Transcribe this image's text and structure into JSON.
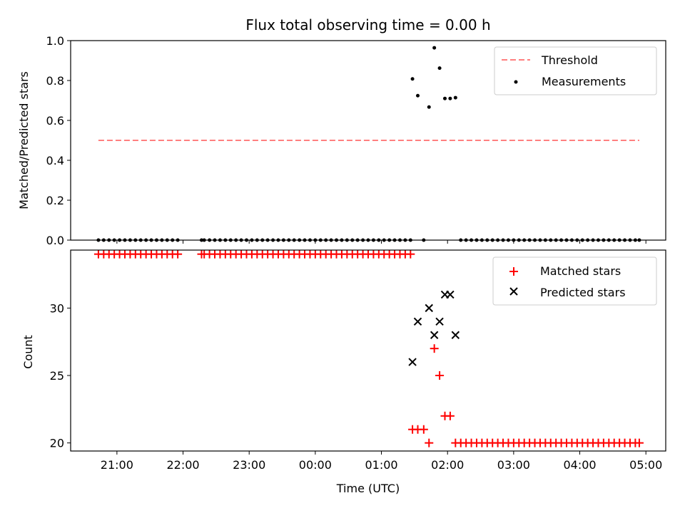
{
  "chart_data": [
    {
      "type": "scatter",
      "title": "Flux total observing time = 0.00 h",
      "xlabel": "",
      "ylabel": "Matched/Predicted stars",
      "ylim": [
        0,
        1.0
      ],
      "x_range_hours": [
        20.3,
        29.3
      ],
      "x_ticks": [],
      "y_ticks": [
        0.0,
        0.2,
        0.4,
        0.6,
        0.8,
        1.0
      ],
      "y_tick_labels": [
        "0.0",
        "0.2",
        "0.4",
        "0.6",
        "0.8",
        "1.0"
      ],
      "legend_position": "top-right",
      "threshold": {
        "name": "Threshold",
        "value": 0.5,
        "x_start": 20.72,
        "x_end": 28.9,
        "color": "#ff7f7f",
        "style": "dashed"
      },
      "series": [
        {
          "name": "Measurements",
          "marker": "dot",
          "color": "#000000",
          "points": [
            [
              20.72,
              0
            ],
            [
              20.8,
              0
            ],
            [
              20.88,
              0
            ],
            [
              20.96,
              0
            ],
            [
              21.04,
              0
            ],
            [
              21.12,
              0
            ],
            [
              21.2,
              0
            ],
            [
              21.28,
              0
            ],
            [
              21.36,
              0
            ],
            [
              21.44,
              0
            ],
            [
              21.52,
              0
            ],
            [
              21.6,
              0
            ],
            [
              21.68,
              0
            ],
            [
              21.76,
              0
            ],
            [
              21.84,
              0
            ],
            [
              21.92,
              0
            ],
            [
              22.28,
              0
            ],
            [
              22.32,
              0
            ],
            [
              22.4,
              0
            ],
            [
              22.48,
              0
            ],
            [
              22.56,
              0
            ],
            [
              22.64,
              0
            ],
            [
              22.72,
              0
            ],
            [
              22.8,
              0
            ],
            [
              22.88,
              0
            ],
            [
              22.96,
              0
            ],
            [
              23.04,
              0
            ],
            [
              23.12,
              0
            ],
            [
              23.2,
              0
            ],
            [
              23.28,
              0
            ],
            [
              23.36,
              0
            ],
            [
              23.44,
              0
            ],
            [
              23.52,
              0
            ],
            [
              23.6,
              0
            ],
            [
              23.68,
              0
            ],
            [
              23.76,
              0
            ],
            [
              23.84,
              0
            ],
            [
              23.92,
              0
            ],
            [
              24.0,
              0
            ],
            [
              24.08,
              0
            ],
            [
              24.16,
              0
            ],
            [
              24.24,
              0
            ],
            [
              24.32,
              0
            ],
            [
              24.4,
              0
            ],
            [
              24.48,
              0
            ],
            [
              24.56,
              0
            ],
            [
              24.64,
              0
            ],
            [
              24.72,
              0
            ],
            [
              24.8,
              0
            ],
            [
              24.88,
              0
            ],
            [
              24.96,
              0
            ],
            [
              25.04,
              0
            ],
            [
              25.12,
              0
            ],
            [
              25.2,
              0
            ],
            [
              25.28,
              0
            ],
            [
              25.36,
              0
            ],
            [
              25.44,
              0
            ],
            [
              25.47,
              0.808
            ],
            [
              25.55,
              0.724
            ],
            [
              25.64,
              0
            ],
            [
              25.72,
              0.667
            ],
            [
              25.8,
              0.964
            ],
            [
              25.88,
              0.862
            ],
            [
              25.96,
              0.71
            ],
            [
              26.04,
              0.71
            ],
            [
              26.12,
              0.714
            ],
            [
              26.2,
              0
            ],
            [
              26.28,
              0
            ],
            [
              26.36,
              0
            ],
            [
              26.44,
              0
            ],
            [
              26.52,
              0
            ],
            [
              26.6,
              0
            ],
            [
              26.68,
              0
            ],
            [
              26.76,
              0
            ],
            [
              26.84,
              0
            ],
            [
              26.92,
              0
            ],
            [
              27.0,
              0
            ],
            [
              27.08,
              0
            ],
            [
              27.16,
              0
            ],
            [
              27.24,
              0
            ],
            [
              27.32,
              0
            ],
            [
              27.4,
              0
            ],
            [
              27.48,
              0
            ],
            [
              27.56,
              0
            ],
            [
              27.64,
              0
            ],
            [
              27.72,
              0
            ],
            [
              27.8,
              0
            ],
            [
              27.88,
              0
            ],
            [
              27.96,
              0
            ],
            [
              28.04,
              0
            ],
            [
              28.12,
              0
            ],
            [
              28.2,
              0
            ],
            [
              28.28,
              0
            ],
            [
              28.36,
              0
            ],
            [
              28.44,
              0
            ],
            [
              28.52,
              0
            ],
            [
              28.6,
              0
            ],
            [
              28.68,
              0
            ],
            [
              28.76,
              0
            ],
            [
              28.84,
              0
            ],
            [
              28.9,
              0
            ]
          ]
        }
      ]
    },
    {
      "type": "scatter",
      "title": "",
      "xlabel": "Time (UTC)",
      "ylabel": "Count",
      "ylim": [
        19.4,
        34.3
      ],
      "x_range_hours": [
        20.3,
        29.3
      ],
      "x_ticks": [
        21,
        22,
        23,
        24,
        25,
        26,
        27,
        28,
        29
      ],
      "x_tick_labels": [
        "21:00",
        "22:00",
        "23:00",
        "00:00",
        "01:00",
        "02:00",
        "03:00",
        "04:00",
        "05:00"
      ],
      "y_ticks": [
        20,
        25,
        30
      ],
      "y_tick_labels": [
        "20",
        "25",
        "30"
      ],
      "legend_position": "top-right",
      "series": [
        {
          "name": "Matched stars",
          "marker": "plus",
          "color": "#ff0000",
          "points": [
            [
              20.72,
              34
            ],
            [
              20.8,
              34
            ],
            [
              20.88,
              34
            ],
            [
              20.96,
              34
            ],
            [
              21.04,
              34
            ],
            [
              21.12,
              34
            ],
            [
              21.2,
              34
            ],
            [
              21.28,
              34
            ],
            [
              21.36,
              34
            ],
            [
              21.44,
              34
            ],
            [
              21.52,
              34
            ],
            [
              21.6,
              34
            ],
            [
              21.68,
              34
            ],
            [
              21.76,
              34
            ],
            [
              21.84,
              34
            ],
            [
              21.92,
              34
            ],
            [
              22.28,
              34
            ],
            [
              22.32,
              34
            ],
            [
              22.4,
              34
            ],
            [
              22.48,
              34
            ],
            [
              22.56,
              34
            ],
            [
              22.64,
              34
            ],
            [
              22.72,
              34
            ],
            [
              22.8,
              34
            ],
            [
              22.88,
              34
            ],
            [
              22.96,
              34
            ],
            [
              23.04,
              34
            ],
            [
              23.12,
              34
            ],
            [
              23.2,
              34
            ],
            [
              23.28,
              34
            ],
            [
              23.36,
              34
            ],
            [
              23.44,
              34
            ],
            [
              23.52,
              34
            ],
            [
              23.6,
              34
            ],
            [
              23.68,
              34
            ],
            [
              23.76,
              34
            ],
            [
              23.84,
              34
            ],
            [
              23.92,
              34
            ],
            [
              24.0,
              34
            ],
            [
              24.08,
              34
            ],
            [
              24.16,
              34
            ],
            [
              24.24,
              34
            ],
            [
              24.32,
              34
            ],
            [
              24.4,
              34
            ],
            [
              24.48,
              34
            ],
            [
              24.56,
              34
            ],
            [
              24.64,
              34
            ],
            [
              24.72,
              34
            ],
            [
              24.8,
              34
            ],
            [
              24.88,
              34
            ],
            [
              24.96,
              34
            ],
            [
              25.04,
              34
            ],
            [
              25.12,
              34
            ],
            [
              25.2,
              34
            ],
            [
              25.28,
              34
            ],
            [
              25.36,
              34
            ],
            [
              25.44,
              34
            ],
            [
              25.47,
              21
            ],
            [
              25.55,
              21
            ],
            [
              25.64,
              21
            ],
            [
              25.72,
              20
            ],
            [
              25.8,
              27
            ],
            [
              25.88,
              25
            ],
            [
              25.96,
              22
            ],
            [
              26.04,
              22
            ],
            [
              26.12,
              20
            ],
            [
              26.2,
              20
            ],
            [
              26.28,
              20
            ],
            [
              26.36,
              20
            ],
            [
              26.44,
              20
            ],
            [
              26.52,
              20
            ],
            [
              26.6,
              20
            ],
            [
              26.68,
              20
            ],
            [
              26.76,
              20
            ],
            [
              26.84,
              20
            ],
            [
              26.92,
              20
            ],
            [
              27.0,
              20
            ],
            [
              27.08,
              20
            ],
            [
              27.16,
              20
            ],
            [
              27.24,
              20
            ],
            [
              27.32,
              20
            ],
            [
              27.4,
              20
            ],
            [
              27.48,
              20
            ],
            [
              27.56,
              20
            ],
            [
              27.64,
              20
            ],
            [
              27.72,
              20
            ],
            [
              27.8,
              20
            ],
            [
              27.88,
              20
            ],
            [
              27.96,
              20
            ],
            [
              28.04,
              20
            ],
            [
              28.12,
              20
            ],
            [
              28.2,
              20
            ],
            [
              28.28,
              20
            ],
            [
              28.36,
              20
            ],
            [
              28.44,
              20
            ],
            [
              28.52,
              20
            ],
            [
              28.6,
              20
            ],
            [
              28.68,
              20
            ],
            [
              28.76,
              20
            ],
            [
              28.84,
              20
            ],
            [
              28.9,
              20
            ]
          ]
        },
        {
          "name": "Predicted stars",
          "marker": "x",
          "color": "#000000",
          "points": [
            [
              25.47,
              26
            ],
            [
              25.55,
              29
            ],
            [
              25.72,
              30
            ],
            [
              25.8,
              28
            ],
            [
              25.88,
              29
            ],
            [
              25.96,
              31
            ],
            [
              26.04,
              31
            ],
            [
              26.12,
              28
            ]
          ]
        }
      ]
    }
  ]
}
